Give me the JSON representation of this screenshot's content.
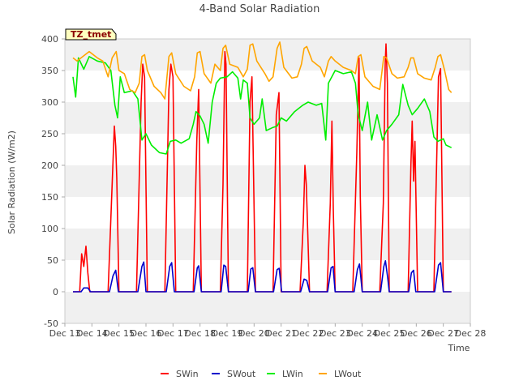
{
  "chart_data": {
    "type": "line",
    "title": "4-Band Solar Radiation",
    "xlabel": "Time",
    "ylabel": "Solar Radiation (W/m2)",
    "ylim": [
      -50,
      400
    ],
    "yticks": [
      -50,
      0,
      50,
      100,
      150,
      200,
      250,
      300,
      350,
      400
    ],
    "xlim": [
      0,
      15
    ],
    "xticks": [
      "Dec 13",
      "Dec 14",
      "Dec 15",
      "Dec 16",
      "Dec 17",
      "Dec 18",
      "Dec 19",
      "Dec 20",
      "Dec 21",
      "Dec 22",
      "Dec 23",
      "Dec 24",
      "Dec 25",
      "Dec 26",
      "Dec 27",
      "Dec 28"
    ],
    "badge": "TZ_tmet",
    "legend_position": "bottom",
    "grid": "horizontal bands",
    "series": [
      {
        "name": "SWin",
        "color": "#ff0000",
        "points": [
          [
            0.3,
            0
          ],
          [
            0.55,
            0
          ],
          [
            0.62,
            60
          ],
          [
            0.7,
            40
          ],
          [
            0.78,
            72
          ],
          [
            0.85,
            30
          ],
          [
            0.92,
            0
          ],
          [
            1.6,
            0
          ],
          [
            1.75,
            170
          ],
          [
            1.83,
            262
          ],
          [
            1.88,
            230
          ],
          [
            1.92,
            180
          ],
          [
            2.0,
            0
          ],
          [
            2.65,
            0
          ],
          [
            2.82,
            300
          ],
          [
            2.88,
            360
          ],
          [
            2.95,
            340
          ],
          [
            3.05,
            0
          ],
          [
            3.7,
            0
          ],
          [
            3.85,
            320
          ],
          [
            3.92,
            360
          ],
          [
            4.0,
            340
          ],
          [
            4.1,
            0
          ],
          [
            4.75,
            0
          ],
          [
            4.88,
            240
          ],
          [
            4.95,
            320
          ],
          [
            5.05,
            0
          ],
          [
            5.75,
            0
          ],
          [
            5.85,
            170
          ],
          [
            5.92,
            380
          ],
          [
            5.96,
            360
          ],
          [
            6.05,
            0
          ],
          [
            6.75,
            0
          ],
          [
            6.85,
            300
          ],
          [
            6.92,
            340
          ],
          [
            7.05,
            0
          ],
          [
            7.7,
            0
          ],
          [
            7.82,
            280
          ],
          [
            7.92,
            315
          ],
          [
            8.0,
            0
          ],
          [
            8.7,
            0
          ],
          [
            8.82,
            110
          ],
          [
            8.88,
            200
          ],
          [
            8.93,
            170
          ],
          [
            9.05,
            0
          ],
          [
            9.7,
            0
          ],
          [
            9.82,
            140
          ],
          [
            9.88,
            270
          ],
          [
            9.93,
            130
          ],
          [
            10.0,
            0
          ],
          [
            10.65,
            0
          ],
          [
            10.8,
            220
          ],
          [
            10.88,
            370
          ],
          [
            10.93,
            150
          ],
          [
            11.0,
            0
          ],
          [
            11.65,
            0
          ],
          [
            11.78,
            140
          ],
          [
            11.85,
            360
          ],
          [
            11.88,
            392
          ],
          [
            11.93,
            330
          ],
          [
            12.0,
            0
          ],
          [
            12.7,
            0
          ],
          [
            12.8,
            200
          ],
          [
            12.85,
            270
          ],
          [
            12.9,
            175
          ],
          [
            12.95,
            238
          ],
          [
            13.05,
            0
          ],
          [
            13.65,
            0
          ],
          [
            13.82,
            340
          ],
          [
            13.9,
            353
          ],
          [
            14.0,
            0
          ],
          [
            14.3,
            0
          ]
        ]
      },
      {
        "name": "SWout",
        "color": "#0000cc",
        "points": [
          [
            0.3,
            0
          ],
          [
            0.6,
            0
          ],
          [
            0.7,
            6
          ],
          [
            0.85,
            6
          ],
          [
            0.95,
            0
          ],
          [
            1.65,
            0
          ],
          [
            1.78,
            25
          ],
          [
            1.88,
            34
          ],
          [
            1.98,
            0
          ],
          [
            2.7,
            0
          ],
          [
            2.85,
            40
          ],
          [
            2.92,
            47
          ],
          [
            3.0,
            0
          ],
          [
            3.75,
            0
          ],
          [
            3.88,
            40
          ],
          [
            3.95,
            46
          ],
          [
            4.05,
            0
          ],
          [
            4.78,
            0
          ],
          [
            4.9,
            38
          ],
          [
            4.95,
            41
          ],
          [
            5.05,
            0
          ],
          [
            5.78,
            0
          ],
          [
            5.88,
            42
          ],
          [
            5.95,
            40
          ],
          [
            6.05,
            0
          ],
          [
            6.78,
            0
          ],
          [
            6.88,
            36
          ],
          [
            6.95,
            38
          ],
          [
            7.05,
            0
          ],
          [
            7.72,
            0
          ],
          [
            7.85,
            35
          ],
          [
            7.93,
            37
          ],
          [
            8.02,
            0
          ],
          [
            8.72,
            0
          ],
          [
            8.85,
            20
          ],
          [
            8.95,
            18
          ],
          [
            9.05,
            0
          ],
          [
            9.72,
            0
          ],
          [
            9.85,
            38
          ],
          [
            9.92,
            40
          ],
          [
            10.0,
            0
          ],
          [
            10.7,
            0
          ],
          [
            10.82,
            35
          ],
          [
            10.9,
            44
          ],
          [
            11.0,
            0
          ],
          [
            11.68,
            0
          ],
          [
            11.8,
            40
          ],
          [
            11.86,
            49
          ],
          [
            11.95,
            20
          ],
          [
            12.0,
            0
          ],
          [
            12.72,
            0
          ],
          [
            12.82,
            30
          ],
          [
            12.9,
            34
          ],
          [
            12.98,
            0
          ],
          [
            13.68,
            0
          ],
          [
            13.82,
            42
          ],
          [
            13.9,
            46
          ],
          [
            14.0,
            0
          ],
          [
            14.3,
            0
          ]
        ]
      },
      {
        "name": "LWin",
        "color": "#00ee00",
        "points": [
          [
            0.3,
            340
          ],
          [
            0.4,
            308
          ],
          [
            0.5,
            370
          ],
          [
            0.7,
            352
          ],
          [
            0.9,
            372
          ],
          [
            1.2,
            365
          ],
          [
            1.5,
            362
          ],
          [
            1.7,
            350
          ],
          [
            1.85,
            295
          ],
          [
            1.95,
            275
          ],
          [
            2.05,
            340
          ],
          [
            2.2,
            315
          ],
          [
            2.5,
            318
          ],
          [
            2.7,
            305
          ],
          [
            2.85,
            240
          ],
          [
            3.0,
            250
          ],
          [
            3.2,
            232
          ],
          [
            3.5,
            220
          ],
          [
            3.75,
            218
          ],
          [
            3.9,
            238
          ],
          [
            4.1,
            240
          ],
          [
            4.3,
            235
          ],
          [
            4.6,
            242
          ],
          [
            4.75,
            265
          ],
          [
            4.85,
            285
          ],
          [
            5.0,
            278
          ],
          [
            5.15,
            265
          ],
          [
            5.3,
            235
          ],
          [
            5.45,
            300
          ],
          [
            5.6,
            330
          ],
          [
            5.75,
            338
          ],
          [
            6.0,
            340
          ],
          [
            6.2,
            348
          ],
          [
            6.4,
            338
          ],
          [
            6.5,
            305
          ],
          [
            6.6,
            335
          ],
          [
            6.75,
            330
          ],
          [
            6.85,
            275
          ],
          [
            7.0,
            265
          ],
          [
            7.2,
            275
          ],
          [
            7.3,
            305
          ],
          [
            7.45,
            255
          ],
          [
            7.7,
            260
          ],
          [
            7.85,
            262
          ],
          [
            8.0,
            275
          ],
          [
            8.2,
            270
          ],
          [
            8.5,
            285
          ],
          [
            8.8,
            295
          ],
          [
            9.0,
            300
          ],
          [
            9.3,
            295
          ],
          [
            9.5,
            298
          ],
          [
            9.65,
            240
          ],
          [
            9.75,
            330
          ],
          [
            10.0,
            350
          ],
          [
            10.3,
            345
          ],
          [
            10.6,
            348
          ],
          [
            10.75,
            330
          ],
          [
            10.85,
            280
          ],
          [
            11.0,
            255
          ],
          [
            11.2,
            300
          ],
          [
            11.35,
            240
          ],
          [
            11.55,
            280
          ],
          [
            11.75,
            240
          ],
          [
            11.9,
            255
          ],
          [
            12.1,
            265
          ],
          [
            12.35,
            280
          ],
          [
            12.5,
            328
          ],
          [
            12.7,
            295
          ],
          [
            12.85,
            280
          ],
          [
            13.05,
            290
          ],
          [
            13.3,
            305
          ],
          [
            13.5,
            285
          ],
          [
            13.65,
            245
          ],
          [
            13.8,
            238
          ],
          [
            14.0,
            242
          ],
          [
            14.1,
            232
          ],
          [
            14.3,
            228
          ]
        ]
      },
      {
        "name": "LWout",
        "color": "#ffa500",
        "points": [
          [
            0.3,
            370
          ],
          [
            0.45,
            365
          ],
          [
            0.6,
            370
          ],
          [
            0.9,
            380
          ],
          [
            1.2,
            370
          ],
          [
            1.4,
            365
          ],
          [
            1.6,
            340
          ],
          [
            1.75,
            370
          ],
          [
            1.9,
            380
          ],
          [
            2.0,
            350
          ],
          [
            2.2,
            345
          ],
          [
            2.4,
            320
          ],
          [
            2.6,
            315
          ],
          [
            2.75,
            330
          ],
          [
            2.85,
            372
          ],
          [
            2.95,
            375
          ],
          [
            3.05,
            350
          ],
          [
            3.3,
            325
          ],
          [
            3.55,
            315
          ],
          [
            3.7,
            305
          ],
          [
            3.85,
            372
          ],
          [
            3.95,
            378
          ],
          [
            4.1,
            345
          ],
          [
            4.4,
            325
          ],
          [
            4.65,
            318
          ],
          [
            4.8,
            340
          ],
          [
            4.9,
            378
          ],
          [
            5.0,
            380
          ],
          [
            5.15,
            345
          ],
          [
            5.4,
            330
          ],
          [
            5.55,
            360
          ],
          [
            5.75,
            350
          ],
          [
            5.85,
            385
          ],
          [
            5.95,
            390
          ],
          [
            6.1,
            360
          ],
          [
            6.4,
            355
          ],
          [
            6.6,
            340
          ],
          [
            6.75,
            352
          ],
          [
            6.85,
            390
          ],
          [
            6.95,
            392
          ],
          [
            7.1,
            365
          ],
          [
            7.4,
            345
          ],
          [
            7.55,
            333
          ],
          [
            7.7,
            340
          ],
          [
            7.85,
            385
          ],
          [
            7.95,
            395
          ],
          [
            8.1,
            355
          ],
          [
            8.4,
            338
          ],
          [
            8.6,
            340
          ],
          [
            8.75,
            360
          ],
          [
            8.85,
            385
          ],
          [
            8.95,
            388
          ],
          [
            9.15,
            365
          ],
          [
            9.45,
            355
          ],
          [
            9.6,
            340
          ],
          [
            9.75,
            365
          ],
          [
            9.85,
            372
          ],
          [
            10.0,
            365
          ],
          [
            10.3,
            355
          ],
          [
            10.6,
            350
          ],
          [
            10.75,
            345
          ],
          [
            10.85,
            372
          ],
          [
            10.95,
            375
          ],
          [
            11.1,
            340
          ],
          [
            11.4,
            325
          ],
          [
            11.65,
            320
          ],
          [
            11.8,
            372
          ],
          [
            11.9,
            370
          ],
          [
            12.1,
            345
          ],
          [
            12.3,
            338
          ],
          [
            12.55,
            340
          ],
          [
            12.7,
            355
          ],
          [
            12.8,
            370
          ],
          [
            12.9,
            370
          ],
          [
            13.05,
            345
          ],
          [
            13.3,
            338
          ],
          [
            13.55,
            335
          ],
          [
            13.7,
            355
          ],
          [
            13.8,
            372
          ],
          [
            13.9,
            375
          ],
          [
            14.05,
            350
          ],
          [
            14.2,
            320
          ],
          [
            14.3,
            315
          ]
        ]
      }
    ]
  }
}
